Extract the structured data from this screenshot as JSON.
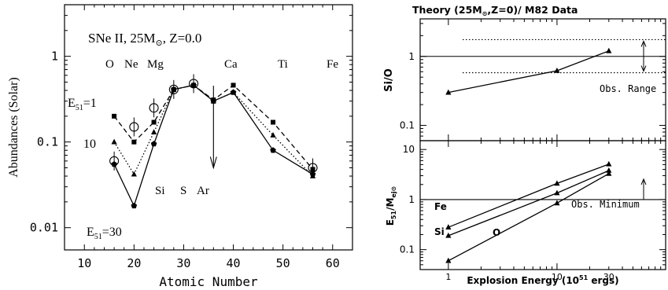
{
  "chart_data": [
    {
      "type": "line",
      "ylabel": "Abundances (Solar)",
      "xlabel": "Atomic Number",
      "xlim": [
        6,
        64
      ],
      "ylim": [
        0.0055,
        4.0
      ],
      "yscale": "log",
      "x_ticks": [
        "10",
        "20",
        "30",
        "40",
        "50",
        "60"
      ],
      "y_ticks": [
        "0.01",
        "0.1",
        "1"
      ],
      "annotations": {
        "model": "SNe II, 25M",
        "model_sub": "⊙",
        "model_tail": ", Z=0.0",
        "top_elements": [
          "O",
          "Ne",
          "Mg",
          "Ca",
          "Ti",
          "Fe"
        ],
        "bottom_elements": [
          "Si",
          "S",
          "Ar"
        ],
        "e51_1": "E",
        "e51_1_sub": "51",
        "e51_1_val": "=1",
        "e51_10": "10",
        "e51_30": "E",
        "e51_30_sub": "51",
        "e51_30_val": "=30"
      },
      "series": [
        {
          "energy": "E51=1",
          "style": "dashed",
          "marker": "square",
          "x": [
            16,
            20,
            24,
            28,
            32,
            36,
            40,
            48,
            56
          ],
          "y": [
            0.2,
            0.1,
            0.17,
            0.41,
            0.46,
            0.31,
            0.46,
            0.17,
            0.048
          ]
        },
        {
          "energy": "E51=10",
          "style": "dotted",
          "marker": "triangle",
          "x": [
            16,
            20,
            24,
            28,
            32,
            36,
            40,
            48,
            56
          ],
          "y": [
            0.1,
            0.042,
            0.13,
            0.41,
            0.46,
            0.3,
            0.38,
            0.12,
            0.04
          ]
        },
        {
          "energy": "E51=30",
          "style": "solid",
          "marker": "pentagon",
          "x": [
            16,
            20,
            24,
            28,
            32,
            36,
            40,
            48,
            56
          ],
          "y": [
            0.055,
            0.018,
            0.095,
            0.41,
            0.46,
            0.3,
            0.38,
            0.08,
            0.042
          ]
        }
      ],
      "observed": {
        "marker": "open-circle",
        "x": [
          16,
          20,
          24,
          28,
          32,
          56
        ],
        "y": [
          0.06,
          0.15,
          0.25,
          0.41,
          0.48,
          0.05
        ],
        "upper_limit": {
          "x": 36,
          "y": 0.31,
          "to": 0.05
        }
      }
    },
    {
      "type": "line",
      "title": "Theory (25M",
      "title_sub": "⊙",
      "title_tail": ",Z=0)/ M82 Data",
      "ylabel": "Si/O",
      "yscale": "log",
      "ylim": [
        0.06,
        3.5
      ],
      "y_ticks": [
        "0.1",
        "1"
      ],
      "series": [
        {
          "name": "Si/O",
          "x": [
            1,
            10,
            30
          ],
          "y": [
            0.3,
            0.62,
            1.2
          ],
          "marker": "triangle"
        }
      ],
      "reference_line": 1.0,
      "range_band": [
        0.58,
        1.75
      ],
      "range_label": "Obs. Range"
    },
    {
      "type": "line",
      "ylabel": "E",
      "ylabel_sub": "51",
      "ylabel_tail": "/M",
      "ylabel_sub2": "ej⊙",
      "xlabel": "Explosion Energy (10",
      "xlabel_sup": "51",
      "xlabel_tail": " ergs)",
      "xscale": "log",
      "xlim": [
        0.55,
        100
      ],
      "yscale": "log",
      "ylim": [
        0.04,
        15
      ],
      "x_ticks": [
        "1",
        "10",
        "30"
      ],
      "y_ticks": [
        "0.1",
        "1",
        "10"
      ],
      "series": [
        {
          "name": "Fe",
          "x": [
            1,
            10,
            30
          ],
          "y": [
            0.28,
            2.1,
            5.1
          ],
          "marker": "triangle"
        },
        {
          "name": "Si",
          "x": [
            1,
            10,
            30
          ],
          "y": [
            0.19,
            1.35,
            3.8
          ],
          "marker": "triangle"
        },
        {
          "name": "O",
          "x": [
            1,
            10,
            30
          ],
          "y": [
            0.06,
            0.85,
            3.3
          ],
          "marker": "triangle"
        }
      ],
      "reference_line": 1.0,
      "reference_label": "Obs. Minimum"
    }
  ]
}
